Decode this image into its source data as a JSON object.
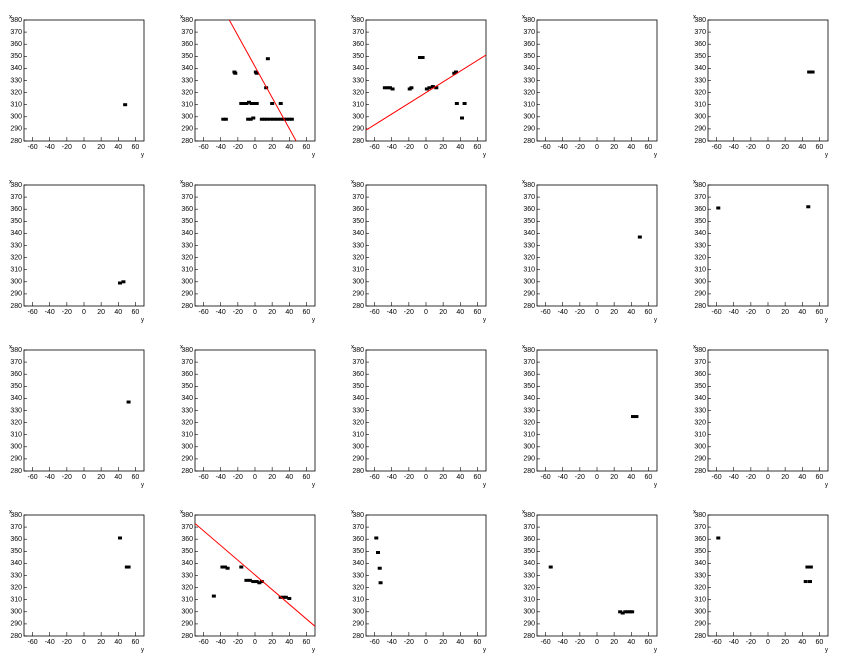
{
  "chart_data": [
    {
      "type": "scatter",
      "x_label": "y",
      "y_label": "x",
      "xlim": [
        -70,
        70
      ],
      "ylim": [
        280,
        380
      ],
      "xticks": [
        -60,
        -40,
        -20,
        0,
        20,
        40,
        60
      ],
      "yticks": [
        280,
        290,
        300,
        310,
        320,
        330,
        340,
        350,
        360,
        370,
        380
      ],
      "color": "#000000",
      "points": {
        "x": [
          48
        ],
        "y": [
          310
        ]
      }
    },
    {
      "type": "scatter",
      "x_label": "y",
      "y_label": "x",
      "xlim": [
        -70,
        70
      ],
      "ylim": [
        280,
        380
      ],
      "xticks": [
        -60,
        -40,
        -20,
        0,
        20,
        40,
        60
      ],
      "yticks": [
        280,
        290,
        300,
        310,
        320,
        330,
        340,
        350,
        360,
        370,
        380
      ],
      "color": "#000000",
      "points": {
        "x": [
          -37,
          -34,
          -24,
          -23,
          -16,
          -13,
          -10,
          -7,
          -4,
          -1,
          2,
          -8,
          -5,
          -2,
          1,
          2,
          8,
          11,
          13,
          15,
          14,
          18,
          20,
          22,
          26,
          30,
          30,
          34,
          37,
          40,
          43
        ],
        "y": [
          298,
          298,
          337,
          336,
          311,
          311,
          311,
          312,
          311,
          311,
          311,
          298,
          298,
          299,
          337,
          336,
          298,
          298,
          324,
          348,
          298,
          298,
          311,
          298,
          298,
          311,
          298,
          298,
          298,
          298,
          298
        ]
      },
      "fit": {
        "color": "#ff0000",
        "x": [
          -30,
          48
        ],
        "y": [
          380,
          280
        ]
      }
    },
    {
      "type": "scatter",
      "x_label": "y",
      "y_label": "x",
      "xlim": [
        -70,
        70
      ],
      "ylim": [
        280,
        380
      ],
      "xticks": [
        -60,
        -40,
        -20,
        0,
        20,
        40,
        60
      ],
      "yticks": [
        280,
        290,
        300,
        310,
        320,
        330,
        340,
        350,
        360,
        370,
        380
      ],
      "color": "#000000",
      "points": {
        "x": [
          -48,
          -45,
          -42,
          -39,
          -19,
          -17,
          -7,
          -4,
          1,
          4,
          8,
          12,
          33,
          35,
          36,
          42,
          45
        ],
        "y": [
          324,
          324,
          324,
          323,
          323,
          324,
          349,
          349,
          323,
          324,
          325,
          324,
          336,
          337,
          311,
          299,
          311
        ]
      },
      "fit": {
        "color": "#ff0000",
        "x": [
          -70,
          70
        ],
        "y": [
          289,
          351
        ]
      }
    },
    {
      "type": "scatter",
      "x_label": "y",
      "y_label": "x",
      "xlim": [
        -70,
        70
      ],
      "ylim": [
        280,
        380
      ],
      "xticks": [
        -60,
        -40,
        -20,
        0,
        20,
        40,
        60
      ],
      "yticks": [
        280,
        290,
        300,
        310,
        320,
        330,
        340,
        350,
        360,
        370,
        380
      ],
      "color": "#000000",
      "points": {
        "x": [],
        "y": []
      }
    },
    {
      "type": "scatter",
      "x_label": "y",
      "y_label": "x",
      "xlim": [
        -70,
        70
      ],
      "ylim": [
        280,
        380
      ],
      "xticks": [
        -60,
        -40,
        -20,
        0,
        20,
        40,
        60
      ],
      "yticks": [
        280,
        290,
        300,
        310,
        320,
        330,
        340,
        350,
        360,
        370,
        380
      ],
      "color": "#000000",
      "points": {
        "x": [
          48,
          50,
          52
        ],
        "y": [
          337,
          337,
          337
        ]
      }
    },
    {
      "type": "scatter",
      "x_label": "y",
      "y_label": "x",
      "xlim": [
        -70,
        70
      ],
      "ylim": [
        280,
        380
      ],
      "xticks": [
        -60,
        -40,
        -20,
        0,
        20,
        40,
        60
      ],
      "yticks": [
        280,
        290,
        300,
        310,
        320,
        330,
        340,
        350,
        360,
        370,
        380
      ],
      "color": "#000000",
      "points": {
        "x": [
          42,
          46
        ],
        "y": [
          299,
          300
        ]
      }
    },
    {
      "type": "scatter",
      "x_label": "y",
      "y_label": "x",
      "xlim": [
        -70,
        70
      ],
      "ylim": [
        280,
        380
      ],
      "xticks": [
        -60,
        -40,
        -20,
        0,
        20,
        40,
        60
      ],
      "yticks": [
        280,
        290,
        300,
        310,
        320,
        330,
        340,
        350,
        360,
        370,
        380
      ],
      "color": "#000000",
      "points": {
        "x": [],
        "y": []
      }
    },
    {
      "type": "scatter",
      "x_label": "y",
      "y_label": "x",
      "xlim": [
        -70,
        70
      ],
      "ylim": [
        280,
        380
      ],
      "xticks": [
        -60,
        -40,
        -20,
        0,
        20,
        40,
        60
      ],
      "yticks": [
        280,
        290,
        300,
        310,
        320,
        330,
        340,
        350,
        360,
        370,
        380
      ],
      "color": "#000000",
      "points": {
        "x": [],
        "y": []
      }
    },
    {
      "type": "scatter",
      "x_label": "y",
      "y_label": "x",
      "xlim": [
        -70,
        70
      ],
      "ylim": [
        280,
        380
      ],
      "xticks": [
        -60,
        -40,
        -20,
        0,
        20,
        40,
        60
      ],
      "yticks": [
        280,
        290,
        300,
        310,
        320,
        330,
        340,
        350,
        360,
        370,
        380
      ],
      "color": "#000000",
      "points": {
        "x": [
          50
        ],
        "y": [
          337
        ]
      }
    },
    {
      "type": "scatter",
      "x_label": "y",
      "y_label": "x",
      "xlim": [
        -70,
        70
      ],
      "ylim": [
        280,
        380
      ],
      "xticks": [
        -60,
        -40,
        -20,
        0,
        20,
        40,
        60
      ],
      "yticks": [
        280,
        290,
        300,
        310,
        320,
        330,
        340,
        350,
        360,
        370,
        380
      ],
      "color": "#000000",
      "points": {
        "x": [
          -58,
          47
        ],
        "y": [
          361,
          362
        ]
      }
    },
    {
      "type": "scatter",
      "x_label": "y",
      "y_label": "x",
      "xlim": [
        -70,
        70
      ],
      "ylim": [
        280,
        380
      ],
      "xticks": [
        -60,
        -40,
        -20,
        0,
        20,
        40,
        60
      ],
      "yticks": [
        280,
        290,
        300,
        310,
        320,
        330,
        340,
        350,
        360,
        370,
        380
      ],
      "color": "#000000",
      "points": {
        "x": [
          52
        ],
        "y": [
          337
        ]
      }
    },
    {
      "type": "scatter",
      "x_label": "y",
      "y_label": "x",
      "xlim": [
        -70,
        70
      ],
      "ylim": [
        280,
        380
      ],
      "xticks": [
        -60,
        -40,
        -20,
        0,
        20,
        40,
        60
      ],
      "yticks": [
        280,
        290,
        300,
        310,
        320,
        330,
        340,
        350,
        360,
        370,
        380
      ],
      "color": "#000000",
      "points": {
        "x": [],
        "y": []
      }
    },
    {
      "type": "scatter",
      "x_label": "y",
      "y_label": "x",
      "xlim": [
        -70,
        70
      ],
      "ylim": [
        280,
        380
      ],
      "xticks": [
        -60,
        -40,
        -20,
        0,
        20,
        40,
        60
      ],
      "yticks": [
        280,
        290,
        300,
        310,
        320,
        330,
        340,
        350,
        360,
        370,
        380
      ],
      "color": "#000000",
      "points": {
        "x": [],
        "y": []
      }
    },
    {
      "type": "scatter",
      "x_label": "y",
      "y_label": "x",
      "xlim": [
        -70,
        70
      ],
      "ylim": [
        280,
        380
      ],
      "xticks": [
        -60,
        -40,
        -20,
        0,
        20,
        40,
        60
      ],
      "yticks": [
        280,
        290,
        300,
        310,
        320,
        330,
        340,
        350,
        360,
        370,
        380
      ],
      "color": "#000000",
      "points": {
        "x": [
          42,
          46
        ],
        "y": [
          325,
          325
        ]
      }
    },
    {
      "type": "scatter",
      "x_label": "y",
      "y_label": "x",
      "xlim": [
        -70,
        70
      ],
      "ylim": [
        280,
        380
      ],
      "xticks": [
        -60,
        -40,
        -20,
        0,
        20,
        40,
        60
      ],
      "yticks": [
        280,
        290,
        300,
        310,
        320,
        330,
        340,
        350,
        360,
        370,
        380
      ],
      "color": "#000000",
      "points": {
        "x": [],
        "y": []
      }
    },
    {
      "type": "scatter",
      "x_label": "y",
      "y_label": "x",
      "xlim": [
        -70,
        70
      ],
      "ylim": [
        280,
        380
      ],
      "xticks": [
        -60,
        -40,
        -20,
        0,
        20,
        40,
        60
      ],
      "yticks": [
        280,
        290,
        300,
        310,
        320,
        330,
        340,
        350,
        360,
        370,
        380
      ],
      "color": "#000000",
      "points": {
        "x": [
          42,
          50,
          52
        ],
        "y": [
          361,
          337,
          337
        ]
      }
    },
    {
      "type": "scatter",
      "x_label": "y",
      "y_label": "x",
      "xlim": [
        -70,
        70
      ],
      "ylim": [
        280,
        380
      ],
      "xticks": [
        -60,
        -40,
        -20,
        0,
        20,
        40,
        60
      ],
      "yticks": [
        280,
        290,
        300,
        310,
        320,
        330,
        340,
        350,
        360,
        370,
        380
      ],
      "color": "#000000",
      "points": {
        "x": [
          -48,
          -38,
          -35,
          -32,
          -16,
          -10,
          -6,
          -2,
          2,
          5,
          8,
          30,
          33,
          36,
          40
        ],
        "y": [
          313,
          337,
          337,
          336,
          337,
          326,
          326,
          325,
          325,
          324,
          325,
          312,
          312,
          312,
          311
        ]
      },
      "fit": {
        "color": "#ff0000",
        "x": [
          -70,
          70
        ],
        "y": [
          373,
          288
        ]
      }
    },
    {
      "type": "scatter",
      "x_label": "y",
      "y_label": "x",
      "xlim": [
        -70,
        70
      ],
      "ylim": [
        280,
        380
      ],
      "xticks": [
        -60,
        -40,
        -20,
        0,
        20,
        40,
        60
      ],
      "yticks": [
        280,
        290,
        300,
        310,
        320,
        330,
        340,
        350,
        360,
        370,
        380
      ],
      "color": "#000000",
      "points": {
        "x": [
          -58,
          -56,
          -54,
          -53
        ],
        "y": [
          361,
          349,
          336,
          324
        ]
      }
    },
    {
      "type": "scatter",
      "x_label": "y",
      "y_label": "x",
      "xlim": [
        -70,
        70
      ],
      "ylim": [
        280,
        380
      ],
      "xticks": [
        -60,
        -40,
        -20,
        0,
        20,
        40,
        60
      ],
      "yticks": [
        280,
        290,
        300,
        310,
        320,
        330,
        340,
        350,
        360,
        370,
        380
      ],
      "color": "#000000",
      "points": {
        "x": [
          -54,
          27,
          30,
          33,
          36,
          39,
          41
        ],
        "y": [
          337,
          300,
          299,
          300,
          300,
          300,
          300
        ]
      }
    },
    {
      "type": "scatter",
      "x_label": "y",
      "y_label": "x",
      "xlim": [
        -70,
        70
      ],
      "ylim": [
        280,
        380
      ],
      "xticks": [
        -60,
        -40,
        -20,
        0,
        20,
        40,
        60
      ],
      "yticks": [
        280,
        290,
        300,
        310,
        320,
        330,
        340,
        350,
        360,
        370,
        380
      ],
      "color": "#000000",
      "points": {
        "x": [
          -58,
          46,
          50,
          44,
          49
        ],
        "y": [
          361,
          337,
          337,
          325,
          325
        ]
      }
    }
  ]
}
